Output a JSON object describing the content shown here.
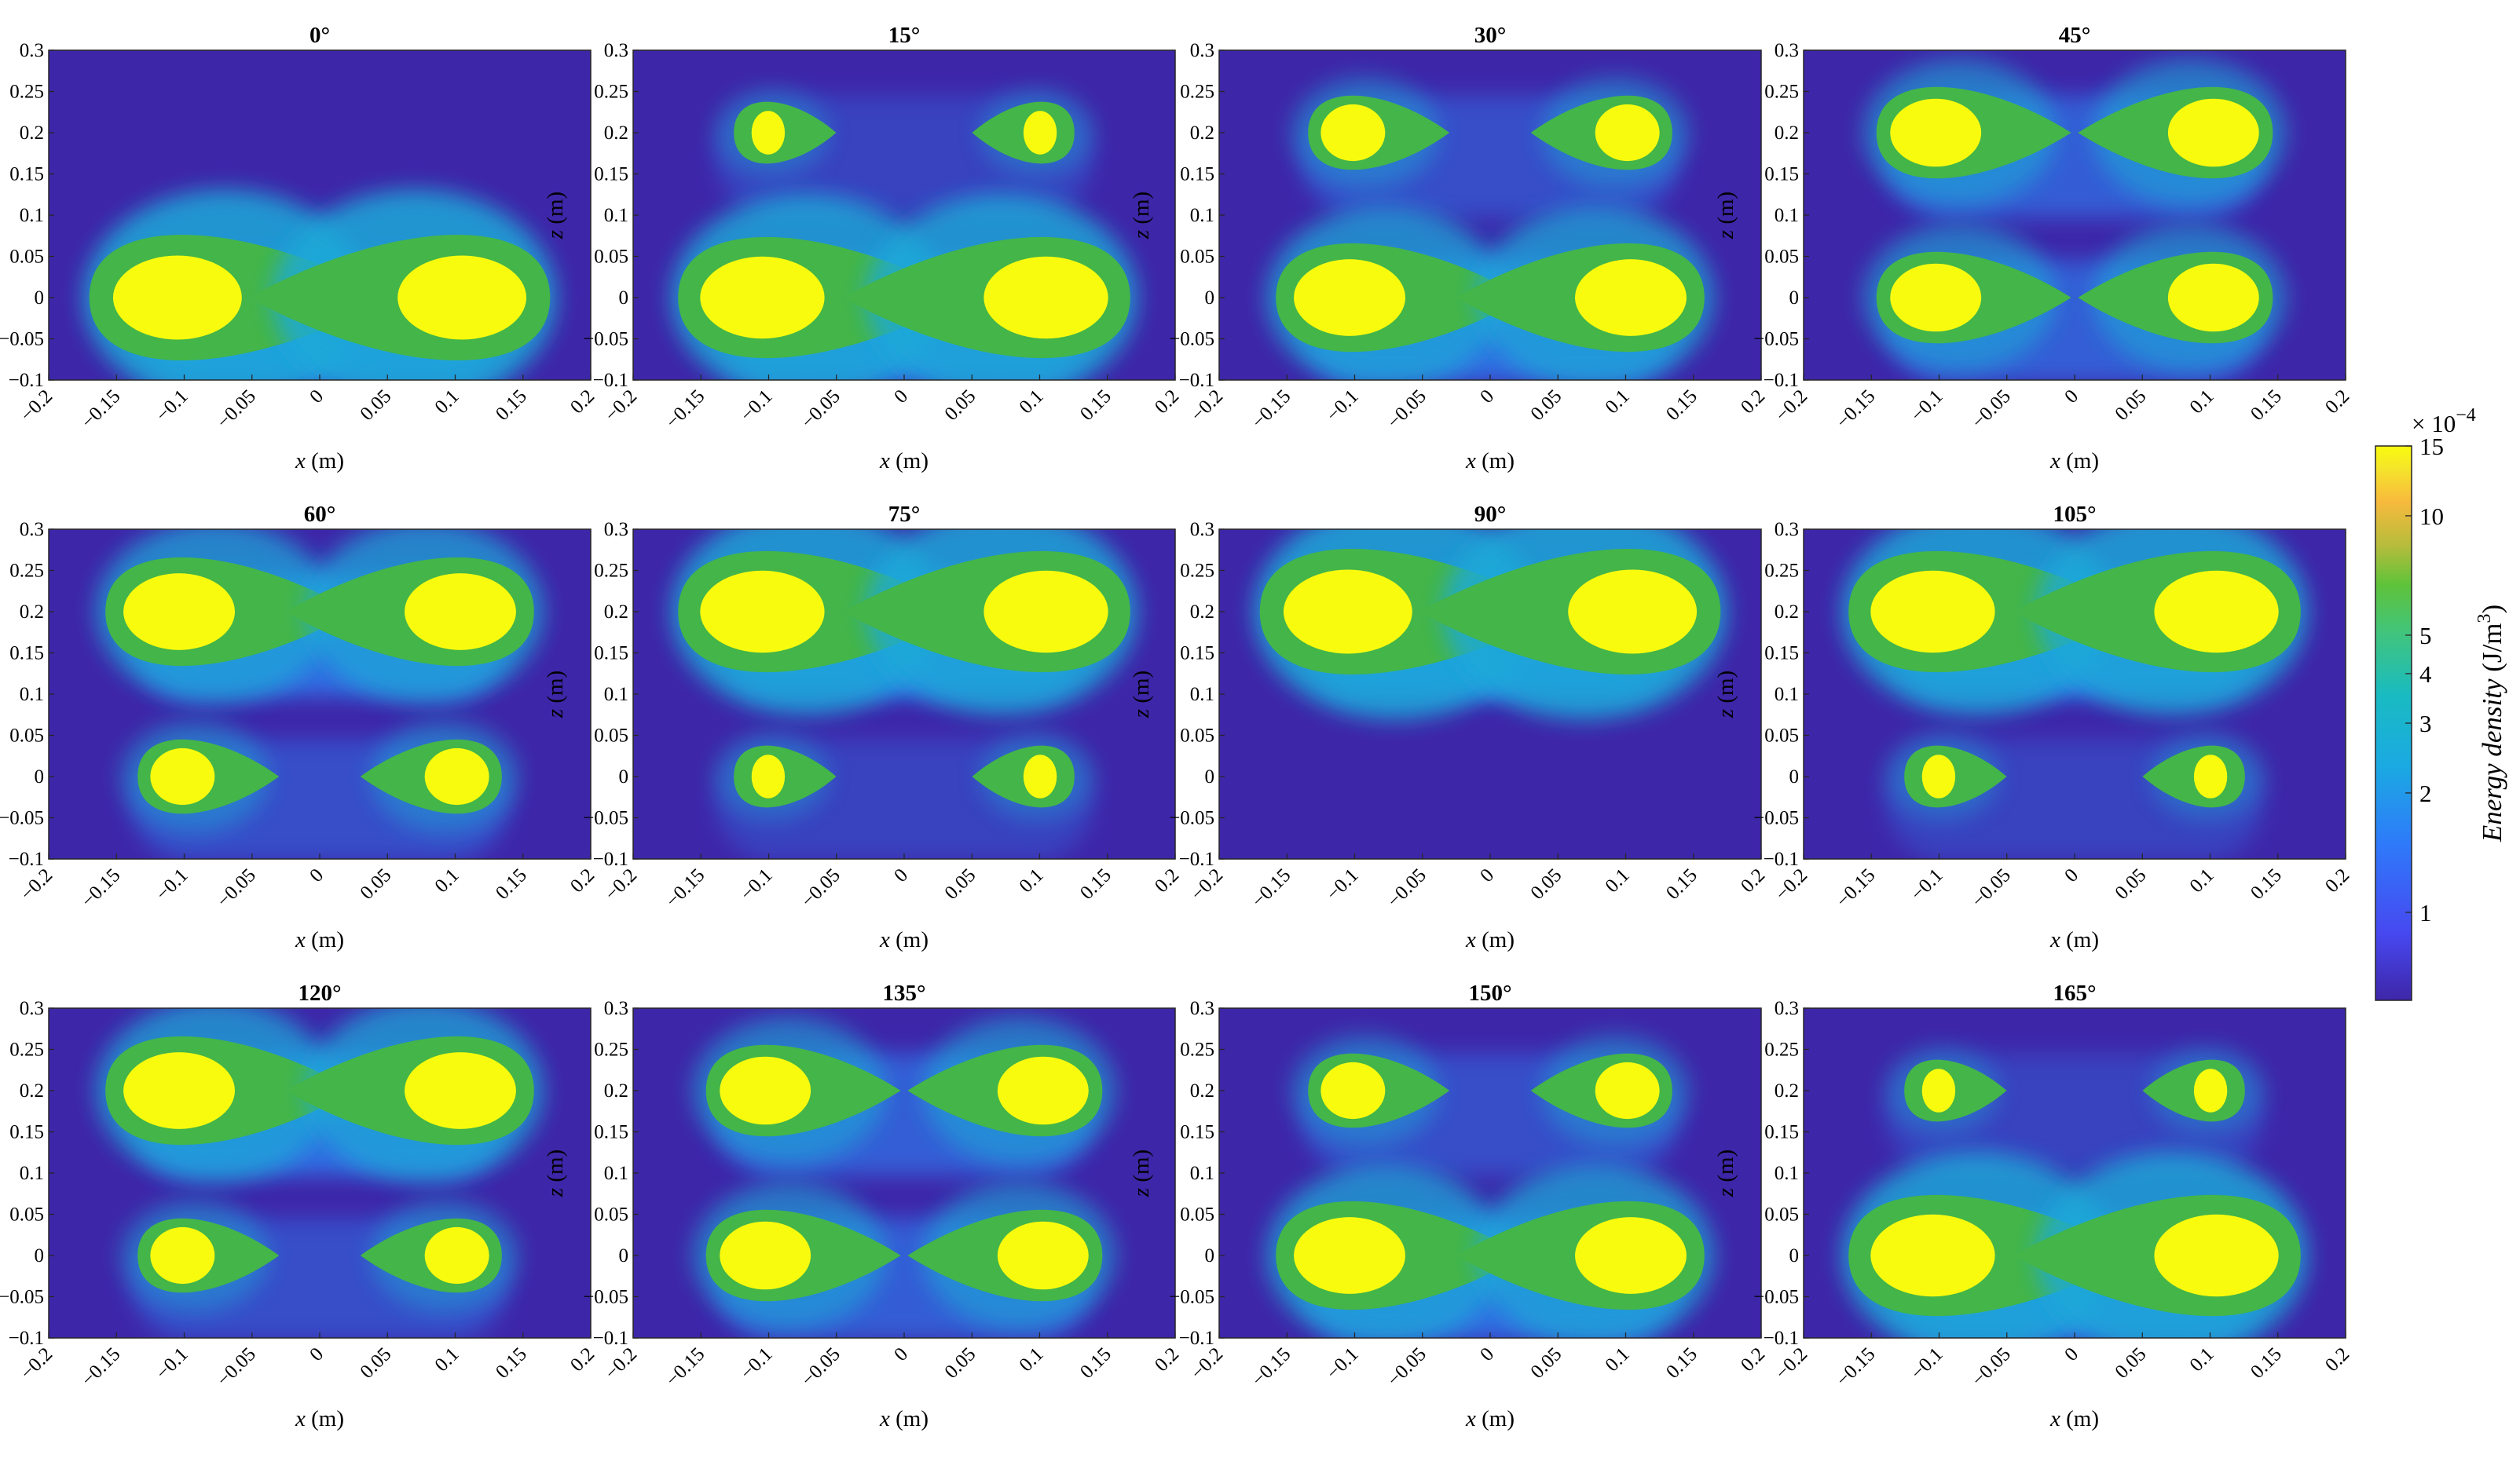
{
  "chart_data": {
    "type": "heatmap",
    "layout": {
      "rows": 3,
      "cols": 4
    },
    "xlabel": "x (m)",
    "ylabel": "z (m)",
    "xlim": [
      -0.2,
      0.2
    ],
    "ylim": [
      -0.1,
      0.3
    ],
    "xticks": [
      "-0.2",
      "-0.15",
      "-0.1",
      "-0.05",
      "0",
      "0.05",
      "0.1",
      "0.15",
      "0.2"
    ],
    "yticks": [
      "0.3",
      "0.25",
      "0.2",
      "0.15",
      "0.1",
      "0.05",
      "0",
      "-0.05",
      "-0.1"
    ],
    "source_positions_x": [
      -0.1,
      0.1
    ],
    "source_positions_z": [
      0.0,
      0.2
    ],
    "panels": [
      {
        "title": "0°",
        "angle_deg": 0
      },
      {
        "title": "15°",
        "angle_deg": 15
      },
      {
        "title": "30°",
        "angle_deg": 30
      },
      {
        "title": "45°",
        "angle_deg": 45
      },
      {
        "title": "60°",
        "angle_deg": 60
      },
      {
        "title": "75°",
        "angle_deg": 75
      },
      {
        "title": "90°",
        "angle_deg": 90
      },
      {
        "title": "105°",
        "angle_deg": 105
      },
      {
        "title": "120°",
        "angle_deg": 120
      },
      {
        "title": "135°",
        "angle_deg": 135
      },
      {
        "title": "150°",
        "angle_deg": 150
      },
      {
        "title": "165°",
        "angle_deg": 165
      }
    ],
    "colorbar": {
      "label_main": "Energy density",
      "label_unit": "(J/m",
      "label_sup": "3",
      "label_close": ")",
      "multiplier_base": "× 10",
      "multiplier_exp": "-4",
      "ticks": [
        "15",
        "10",
        "5",
        "4",
        "3",
        "2",
        "1"
      ],
      "tick_values": [
        15,
        10,
        5,
        4,
        3,
        2,
        1
      ],
      "range": [
        0.6,
        15
      ],
      "colors": {
        "background": "#3e26a8",
        "blue": "#2e87f7",
        "cyan": "#1ea9d8",
        "green": "#44b548",
        "yellow": "#f9fb0e"
      }
    }
  }
}
